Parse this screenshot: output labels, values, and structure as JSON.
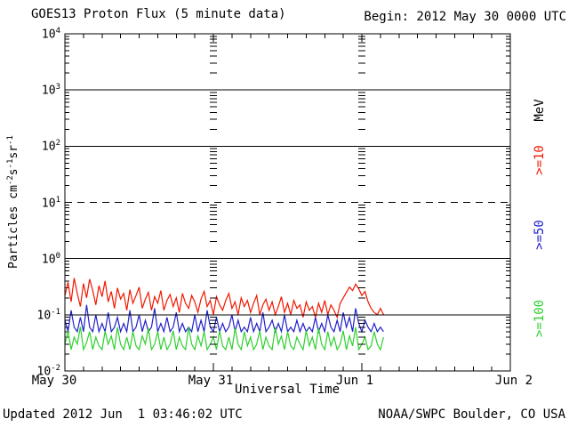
{
  "header": {
    "title": "GOES13 Proton Flux (5 minute data)",
    "begin": "Begin: 2012 May 30 0000 UTC"
  },
  "footer": {
    "updated": "Updated 2012 Jun  1 03:46:02 UTC",
    "source": "NOAA/SWPC Boulder, CO USA"
  },
  "y_axis": {
    "label_prefix": "Particles cm",
    "sup1": "-2",
    "mid1": "s",
    "sup2": "-1",
    "mid2": "sr",
    "sup3": "-1",
    "tick_base": "10",
    "tick_exponents": [
      "4",
      "3",
      "2",
      "1",
      "0",
      "-1",
      "-2"
    ]
  },
  "x_axis": {
    "label": "Universal Time",
    "day_labels": [
      "May 30",
      "May 31",
      "Jun 1",
      "Jun 2"
    ]
  },
  "right_labels": [
    {
      "text": "MeV",
      "color": "#000000"
    },
    {
      "text": ">=10",
      "color": "#f01800"
    },
    {
      "text": ">=50",
      "color": "#2020cc"
    },
    {
      "text": ">=100",
      "color": "#30d030"
    }
  ],
  "chart_data": {
    "type": "line",
    "title": "GOES13 Proton Flux (5 minute data)",
    "xlabel": "Universal Time",
    "ylabel": "Particles cm^-2 s^-1 sr^-1",
    "x_unit": "hours since 2012 May 30 0000 UTC",
    "x_range_hours": [
      0,
      72
    ],
    "sample_interval_hours": 0.5,
    "y_scale": "log10",
    "ylim": [
      0.01,
      10000
    ],
    "grid": "decade lines across plot",
    "grid_decades_solid": [
      3,
      2,
      0,
      -1
    ],
    "grid_decades_dashed": [
      1
    ],
    "day_gridlines_hours": [
      24,
      48
    ],
    "x_day_labels": [
      "May 30",
      "May 31",
      "Jun 1",
      "Jun 2"
    ],
    "legend_position": "right-margin-rotated",
    "series": [
      {
        "name": ">=10 MeV",
        "color": "#f01800",
        "values": [
          0.22,
          0.38,
          0.17,
          0.45,
          0.24,
          0.14,
          0.36,
          0.2,
          0.43,
          0.27,
          0.15,
          0.33,
          0.21,
          0.4,
          0.17,
          0.26,
          0.13,
          0.3,
          0.19,
          0.24,
          0.12,
          0.28,
          0.16,
          0.22,
          0.31,
          0.13,
          0.19,
          0.25,
          0.12,
          0.21,
          0.16,
          0.27,
          0.12,
          0.18,
          0.23,
          0.14,
          0.2,
          0.11,
          0.24,
          0.16,
          0.13,
          0.22,
          0.17,
          0.11,
          0.19,
          0.26,
          0.14,
          0.18,
          0.1,
          0.21,
          0.15,
          0.12,
          0.18,
          0.24,
          0.13,
          0.17,
          0.1,
          0.2,
          0.14,
          0.18,
          0.11,
          0.16,
          0.22,
          0.1,
          0.15,
          0.19,
          0.12,
          0.17,
          0.1,
          0.14,
          0.21,
          0.11,
          0.16,
          0.1,
          0.18,
          0.13,
          0.15,
          0.09,
          0.17,
          0.12,
          0.14,
          0.09,
          0.16,
          0.11,
          0.18,
          0.1,
          0.15,
          0.12,
          0.09,
          0.16,
          0.2,
          0.25,
          0.31,
          0.27,
          0.35,
          0.29,
          0.22,
          0.26,
          0.17,
          0.13,
          0.11,
          0.1,
          0.13,
          0.1
        ]
      },
      {
        "name": ">=50 MeV",
        "color": "#2020cc",
        "values": [
          0.08,
          0.05,
          0.12,
          0.06,
          0.05,
          0.09,
          0.05,
          0.15,
          0.06,
          0.05,
          0.1,
          0.05,
          0.07,
          0.05,
          0.11,
          0.05,
          0.06,
          0.09,
          0.05,
          0.07,
          0.05,
          0.12,
          0.05,
          0.06,
          0.1,
          0.05,
          0.08,
          0.05,
          0.06,
          0.13,
          0.05,
          0.07,
          0.05,
          0.09,
          0.05,
          0.06,
          0.11,
          0.05,
          0.07,
          0.05,
          0.06,
          0.05,
          0.1,
          0.05,
          0.08,
          0.05,
          0.12,
          0.06,
          0.05,
          0.09,
          0.05,
          0.07,
          0.05,
          0.06,
          0.1,
          0.05,
          0.08,
          0.05,
          0.06,
          0.05,
          0.09,
          0.05,
          0.07,
          0.05,
          0.11,
          0.05,
          0.06,
          0.08,
          0.05,
          0.07,
          0.05,
          0.1,
          0.05,
          0.06,
          0.05,
          0.08,
          0.05,
          0.07,
          0.05,
          0.06,
          0.05,
          0.09,
          0.05,
          0.07,
          0.05,
          0.1,
          0.06,
          0.05,
          0.08,
          0.05,
          0.11,
          0.06,
          0.09,
          0.05,
          0.13,
          0.07,
          0.05,
          0.08,
          0.06,
          0.05,
          0.07,
          0.05,
          0.06,
          0.05
        ]
      },
      {
        "name": ">=100 MeV",
        "color": "#30d030",
        "values": [
          0.03,
          0.052,
          0.024,
          0.04,
          0.03,
          0.061,
          0.024,
          0.032,
          0.05,
          0.024,
          0.04,
          0.028,
          0.024,
          0.051,
          0.03,
          0.042,
          0.024,
          0.06,
          0.03,
          0.024,
          0.04,
          0.024,
          0.05,
          0.028,
          0.024,
          0.042,
          0.03,
          0.058,
          0.024,
          0.03,
          0.05,
          0.024,
          0.04,
          0.024,
          0.03,
          0.052,
          0.024,
          0.04,
          0.028,
          0.024,
          0.06,
          0.03,
          0.024,
          0.042,
          0.028,
          0.05,
          0.024,
          0.03,
          0.04,
          0.024,
          0.052,
          0.028,
          0.024,
          0.04,
          0.024,
          0.058,
          0.03,
          0.024,
          0.05,
          0.028,
          0.04,
          0.024,
          0.03,
          0.052,
          0.024,
          0.04,
          0.028,
          0.024,
          0.06,
          0.03,
          0.042,
          0.024,
          0.05,
          0.028,
          0.024,
          0.04,
          0.03,
          0.024,
          0.052,
          0.028,
          0.04,
          0.024,
          0.058,
          0.03,
          0.024,
          0.05,
          0.028,
          0.04,
          0.024,
          0.03,
          0.052,
          0.024,
          0.042,
          0.028,
          0.06,
          0.024,
          0.03,
          0.04,
          0.024,
          0.028,
          0.05,
          0.03,
          0.024,
          0.04
        ]
      }
    ]
  }
}
